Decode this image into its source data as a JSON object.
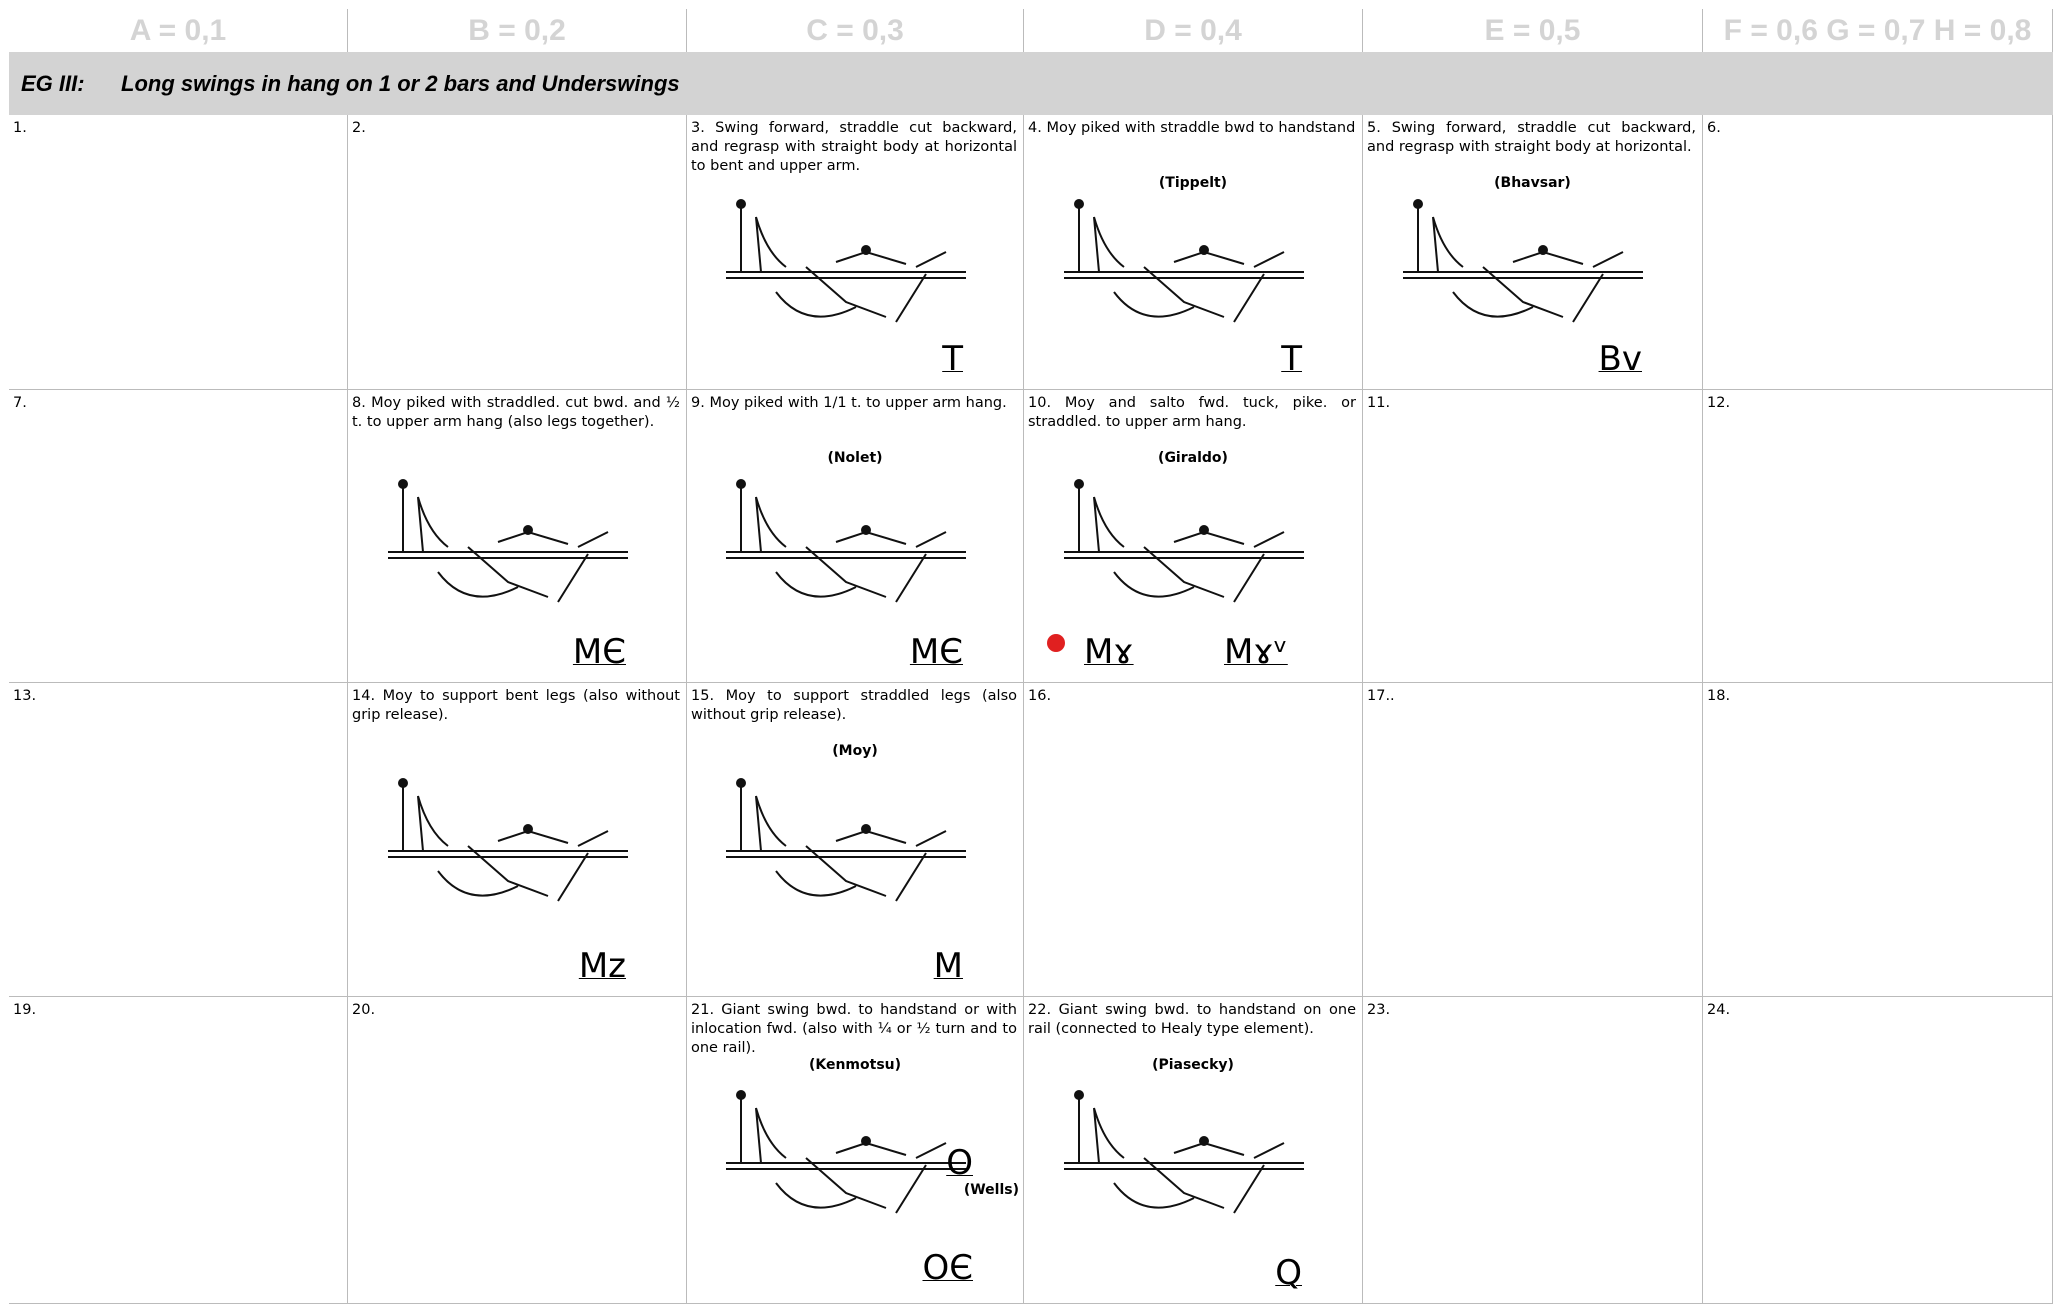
{
  "header": {
    "columns": [
      "A = 0,1",
      "B = 0,2",
      "C = 0,3",
      "D = 0,4",
      "E = 0,5",
      "F = 0,6 G = 0,7 H = 0,8"
    ]
  },
  "section": {
    "code": "EG III:",
    "title": "Long swings in hang on 1 or 2 bars and Underswings"
  },
  "table": {
    "rows": [
      [
        {
          "text": "1."
        },
        {
          "text": "2."
        },
        {
          "text": "3.  Swing forward, straddle cut backward, and regrasp with straight body at horizontal to bent and upper arm.",
          "symbols": [
            "T"
          ]
        },
        {
          "text": "4.  Moy piked with straddle bwd to handstand",
          "names": [
            "(Tippelt)"
          ],
          "symbols": [
            "T"
          ]
        },
        {
          "text": "5. Swing forward, straddle cut backward, and regrasp with straight body at horizontal.",
          "names": [
            "(Bhavsar)"
          ],
          "symbols": [
            "Bv"
          ]
        },
        {
          "text": "6."
        }
      ],
      [
        {
          "text": "7."
        },
        {
          "text": "8. Moy piked with straddled. cut bwd. and ½ t. to upper arm hang (also legs together).",
          "symbols": [
            "MЄ"
          ]
        },
        {
          "text": "9.  Moy piked with 1/1 t. to upper arm hang.",
          "names": [
            "(Nolet)"
          ],
          "symbols": [
            "MЄ"
          ]
        },
        {
          "text": "10.  Moy and salto fwd. tuck, pike. or straddled. to upper arm hang.",
          "names": [
            "(Giraldo)"
          ],
          "symbols": [
            "Mɤ",
            "Mɤᵛ"
          ]
        },
        {
          "text": "11."
        },
        {
          "text": "12."
        }
      ],
      [
        {
          "text": "13."
        },
        {
          "text": "14. Moy to support bent legs (also without grip release).",
          "symbols": [
            "Mz"
          ]
        },
        {
          "text": "15. Moy to support straddled legs (also without grip release).",
          "names": [
            "(Moy)"
          ],
          "symbols": [
            "M"
          ]
        },
        {
          "text": "16."
        },
        {
          "text": "17.."
        },
        {
          "text": "18."
        }
      ],
      [
        {
          "text": "19."
        },
        {
          "text": "20."
        },
        {
          "text": "21. Giant swing bwd. to handstand or with inlocation fwd. (also with ¼ or ½ turn and to one rail).",
          "names": [
            "(Kenmotsu)",
            "(Wells)"
          ],
          "symbols": [
            "O",
            "OЄ"
          ]
        },
        {
          "text": "22. Giant swing bwd. to handstand on one rail (connected to Healy type element).",
          "names": [
            "(Piasecky)"
          ],
          "symbols": [
            "Q"
          ]
        },
        {
          "text": "23."
        },
        {
          "text": "24."
        }
      ]
    ]
  }
}
